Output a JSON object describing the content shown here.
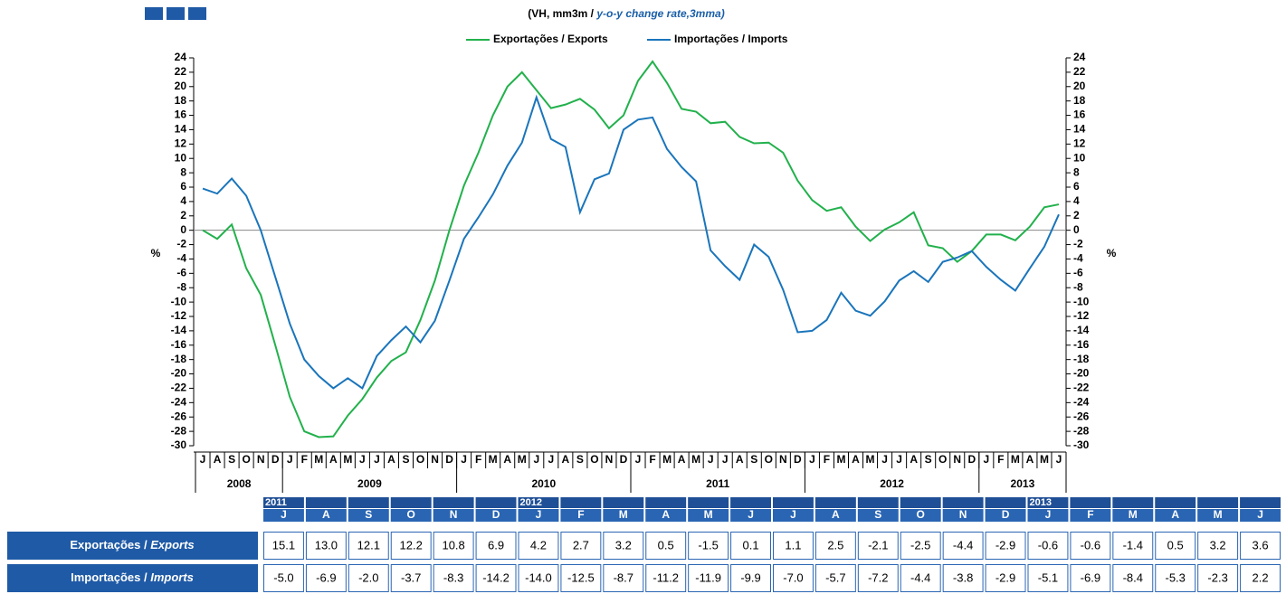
{
  "chart_data": {
    "type": "line",
    "title": [
      "(VH, mm3m / ",
      "y-o-y change rate,3mma)"
    ],
    "ylabel": "%",
    "y2label": "%",
    "categories": [
      "J",
      "A",
      "S",
      "O",
      "N",
      "D",
      "J",
      "F",
      "M",
      "A",
      "M",
      "J",
      "J",
      "A",
      "S",
      "O",
      "N",
      "D",
      "J",
      "F",
      "M",
      "A",
      "M",
      "J",
      "J",
      "A",
      "S",
      "O",
      "N",
      "D",
      "J",
      "F",
      "M",
      "A",
      "M",
      "J",
      "J",
      "A",
      "S",
      "O",
      "N",
      "D",
      "J",
      "F",
      "M",
      "A",
      "M",
      "J",
      "J",
      "A",
      "S",
      "O",
      "N",
      "D",
      "J",
      "F",
      "M",
      "A",
      "M",
      "J"
    ],
    "years": [
      "2008",
      "2009",
      "2010",
      "2011",
      "2012",
      "2013"
    ],
    "series": [
      {
        "name": "Exportações / Exports",
        "color": "#22b14c",
        "values": [
          0,
          -1.2,
          0.8,
          -5.3,
          -9,
          -16,
          -23.2,
          -28,
          -28.8,
          -28.7,
          -25.8,
          -23.5,
          -20.5,
          -18.2,
          -17,
          -12.5,
          -7,
          0,
          6.2,
          10.8,
          16,
          20,
          22,
          19.5,
          17,
          17.5,
          18.3,
          16.8,
          14.2,
          16,
          20.8,
          23.5,
          20.5,
          16.9,
          16.5,
          14.9,
          15.1,
          13.0,
          12.1,
          12.2,
          10.8,
          6.9,
          4.2,
          2.7,
          3.2,
          0.5,
          -1.5,
          0.1,
          1.1,
          2.5,
          -2.1,
          -2.5,
          -4.4,
          -2.9,
          -0.6,
          -0.6,
          -1.4,
          0.5,
          3.2,
          3.6
        ]
      },
      {
        "name": "Importações / Imports",
        "color": "#1a75bb",
        "values": [
          5.8,
          5.1,
          7.2,
          4.8,
          0,
          -6.5,
          -13,
          -18,
          -20.3,
          -22,
          -20.6,
          -22,
          -17.5,
          -15.3,
          -13.4,
          -15.6,
          -12.6,
          -7,
          -1.2,
          1.8,
          5,
          9,
          12.2,
          18.5,
          12.7,
          11.6,
          2.5,
          7.1,
          7.9,
          14,
          15.4,
          15.7,
          11.3,
          8.8,
          6.8,
          -2.8,
          -5.0,
          -6.9,
          -2.0,
          -3.7,
          -8.3,
          -14.2,
          -14.0,
          -12.5,
          -8.7,
          -11.2,
          -11.9,
          -9.9,
          -7.0,
          -5.7,
          -7.2,
          -4.4,
          -3.8,
          -2.9,
          -5.1,
          -6.9,
          -8.4,
          -5.3,
          -2.3,
          2.2
        ]
      }
    ],
    "ylim": [
      -30,
      24
    ],
    "yticks": [
      -30,
      -28,
      -26,
      -24,
      -22,
      -20,
      -18,
      -16,
      -14,
      -12,
      -10,
      -8,
      -6,
      -4,
      -2,
      0,
      2,
      4,
      6,
      8,
      10,
      12,
      14,
      16,
      18,
      20,
      22,
      24
    ],
    "y2lim": [
      -30,
      24
    ],
    "y2ticks": [
      -30,
      -28,
      -26,
      -24,
      -22,
      -20,
      -18,
      -16,
      -14,
      -12,
      -10,
      -8,
      -6,
      -4,
      -2,
      0,
      2,
      4,
      6,
      8,
      10,
      12,
      14,
      16,
      18,
      20,
      22,
      24
    ]
  },
  "table": {
    "year_labels": [
      {
        "col": 0,
        "label": "2011"
      },
      {
        "col": 6,
        "label": "2012"
      },
      {
        "col": 18,
        "label": "2013"
      }
    ],
    "months": [
      "J",
      "A",
      "S",
      "O",
      "N",
      "D",
      "J",
      "F",
      "M",
      "A",
      "M",
      "J",
      "J",
      "A",
      "S",
      "O",
      "N",
      "D",
      "J",
      "F",
      "M",
      "A",
      "M",
      "J"
    ],
    "rows": [
      {
        "label": [
          "Exportações / ",
          "Exports"
        ],
        "values": [
          "15.1",
          "13.0",
          "12.1",
          "12.2",
          "10.8",
          "6.9",
          "4.2",
          "2.7",
          "3.2",
          "0.5",
          "-1.5",
          "0.1",
          "1.1",
          "2.5",
          "-2.1",
          "-2.5",
          "-4.4",
          "-2.9",
          "-0.6",
          "-0.6",
          "-1.4",
          "0.5",
          "3.2",
          "3.6"
        ]
      },
      {
        "label": [
          "Importações / ",
          "Imports"
        ],
        "values": [
          "-5.0",
          "-6.9",
          "-2.0",
          "-3.7",
          "-8.3",
          "-14.2",
          "-14.0",
          "-12.5",
          "-8.7",
          "-11.2",
          "-11.9",
          "-9.9",
          "-7.0",
          "-5.7",
          "-7.2",
          "-4.4",
          "-3.8",
          "-2.9",
          "-5.1",
          "-6.9",
          "-8.4",
          "-5.3",
          "-2.3",
          "2.2"
        ]
      }
    ]
  }
}
